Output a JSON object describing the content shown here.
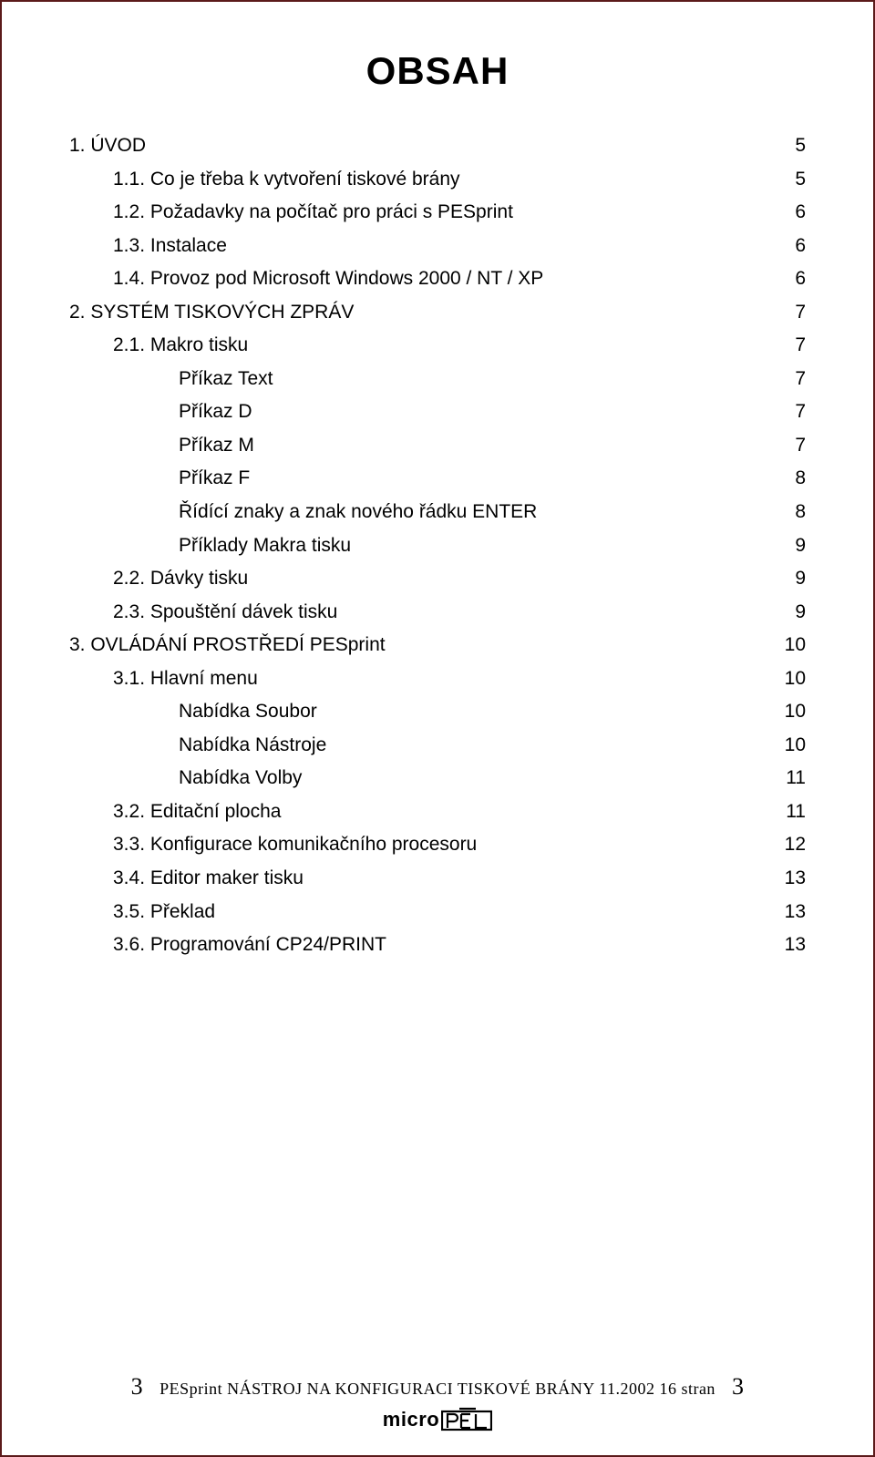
{
  "title": "OBSAH",
  "toc": [
    {
      "level": 0,
      "label": "1. ÚVOD",
      "page": "5"
    },
    {
      "level": 1,
      "label": "1.1. Co je třeba k vytvoření tiskové brány",
      "page": "5"
    },
    {
      "level": 1,
      "label": "1.2. Požadavky na počítač pro práci s PESprint",
      "page": "6"
    },
    {
      "level": 1,
      "label": "1.3. Instalace",
      "page": "6"
    },
    {
      "level": 1,
      "label": "1.4. Provoz pod Microsoft Windows 2000 / NT / XP",
      "page": "6"
    },
    {
      "level": 0,
      "label": "2. SYSTÉM TISKOVÝCH ZPRÁV",
      "page": "7"
    },
    {
      "level": 1,
      "label": "2.1. Makro tisku",
      "page": "7"
    },
    {
      "level": 2,
      "label": "Příkaz Text",
      "page": "7"
    },
    {
      "level": 2,
      "label": "Příkaz D",
      "page": "7"
    },
    {
      "level": 2,
      "label": "Příkaz M",
      "page": "7"
    },
    {
      "level": 2,
      "label": "Příkaz F",
      "page": "8"
    },
    {
      "level": 2,
      "label": "Řídící znaky a znak nového řádku ENTER",
      "page": "8"
    },
    {
      "level": 2,
      "label": "Příklady Makra tisku",
      "page": "9"
    },
    {
      "level": 1,
      "label": "2.2. Dávky tisku",
      "page": "9"
    },
    {
      "level": 1,
      "label": "2.3. Spouštění dávek tisku",
      "page": "9"
    },
    {
      "level": 0,
      "label": "3. OVLÁDÁNÍ PROSTŘEDÍ PESprint",
      "page": "10"
    },
    {
      "level": 1,
      "label": "3.1. Hlavní menu",
      "page": "10"
    },
    {
      "level": 2,
      "label": "Nabídka Soubor",
      "page": "10"
    },
    {
      "level": 2,
      "label": "Nabídka Nástroje",
      "page": "10"
    },
    {
      "level": 2,
      "label": "Nabídka Volby",
      "page": "11"
    },
    {
      "level": 1,
      "label": "3.2. Editační plocha",
      "page": "11"
    },
    {
      "level": 1,
      "label": "3.3. Konfigurace komunikačního procesoru",
      "page": "12"
    },
    {
      "level": 1,
      "label": "3.4. Editor maker tisku",
      "page": "13"
    },
    {
      "level": 1,
      "label": "3.5. Překlad",
      "page": "13"
    },
    {
      "level": 1,
      "label": "3.6. Programování CP24/PRINT",
      "page": "13"
    }
  ],
  "footer": {
    "left_num": "3",
    "center": "PESprint  NÁSTROJ NA KONFIGURACI TISKOVÉ BRÁNY    11.2002    16 stran",
    "right_num": "3",
    "logo_text": "micro"
  },
  "colors": {
    "border": "#5b1a1a",
    "text": "#000000",
    "background": "#ffffff"
  }
}
